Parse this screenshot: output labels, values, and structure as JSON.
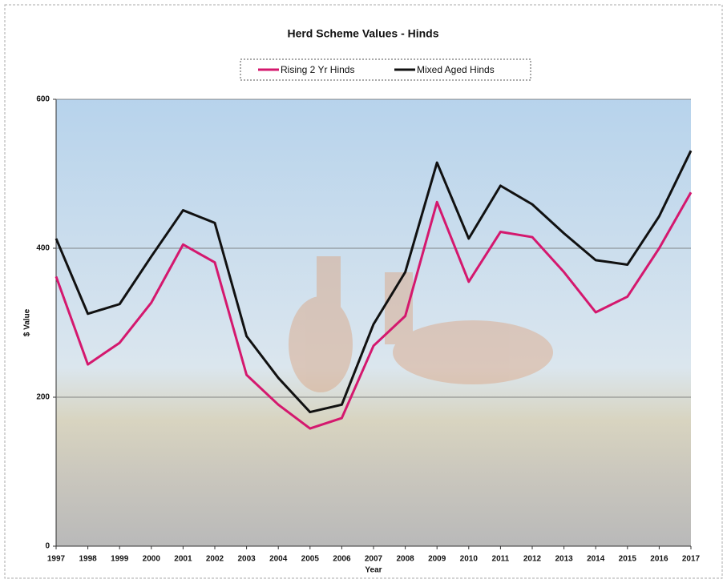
{
  "chart_data": {
    "type": "line",
    "title": "Herd Scheme Values - Hinds",
    "x_label": "Year",
    "y_label": "$ Value",
    "categories": [
      "1997",
      "1998",
      "1999",
      "2000",
      "2001",
      "2002",
      "2003",
      "2004",
      "2005",
      "2006",
      "2007",
      "2008",
      "2009",
      "2010",
      "2011",
      "2012",
      "2013",
      "2014",
      "2015",
      "2016",
      "2017"
    ],
    "series": [
      {
        "name": "Rising 2 Yr Hinds",
        "color": "#d4186e",
        "values": [
          362,
          244,
          273,
          327,
          405,
          381,
          230,
          190,
          158,
          172,
          269,
          309,
          462,
          355,
          422,
          415,
          368,
          314,
          335,
          400,
          475
        ]
      },
      {
        "name": "Mixed Aged Hinds",
        "color": "#111111",
        "values": [
          413,
          312,
          325,
          389,
          451,
          434,
          282,
          226,
          180,
          190,
          298,
          368,
          515,
          413,
          484,
          459,
          420,
          384,
          378,
          443,
          531
        ]
      }
    ],
    "ylim": [
      0,
      600
    ],
    "yticks": [
      0,
      200,
      400,
      600
    ],
    "grid": true,
    "legend": "top"
  }
}
